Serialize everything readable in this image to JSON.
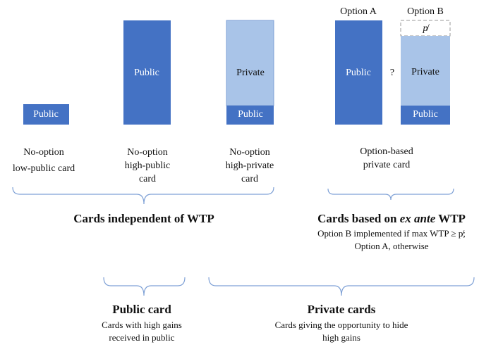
{
  "cards": [
    {
      "segments": [
        "Public"
      ],
      "caption": [
        "No-option",
        "low-public card"
      ]
    },
    {
      "segments": [
        "Public"
      ],
      "caption": [
        "No-option",
        "high-public",
        "card"
      ]
    },
    {
      "segments": [
        "Private",
        "Public"
      ],
      "caption": [
        "No-option",
        "high-private",
        "card"
      ]
    },
    {
      "option_a": {
        "label": "Option A",
        "segment": "Public"
      },
      "separator": "?",
      "option_b": {
        "label": "Option B",
        "threshold": "p̸",
        "segments": [
          "Private",
          "Public"
        ]
      },
      "caption": [
        "Option-based",
        "private card"
      ]
    }
  ],
  "groups": [
    {
      "title": "Cards independent of WTP"
    },
    {
      "title": [
        "Cards based on ",
        "ex ante",
        " WTP"
      ],
      "notes": [
        "Option B implemented if max WTP ≥ p̸;",
        "Option A, otherwise"
      ]
    },
    {
      "title": "Public card",
      "notes": [
        "Cards with high gains",
        "received in public"
      ]
    },
    {
      "title": "Private cards",
      "notes": [
        "Cards giving the opportunity to hide",
        "high gains"
      ]
    }
  ]
}
